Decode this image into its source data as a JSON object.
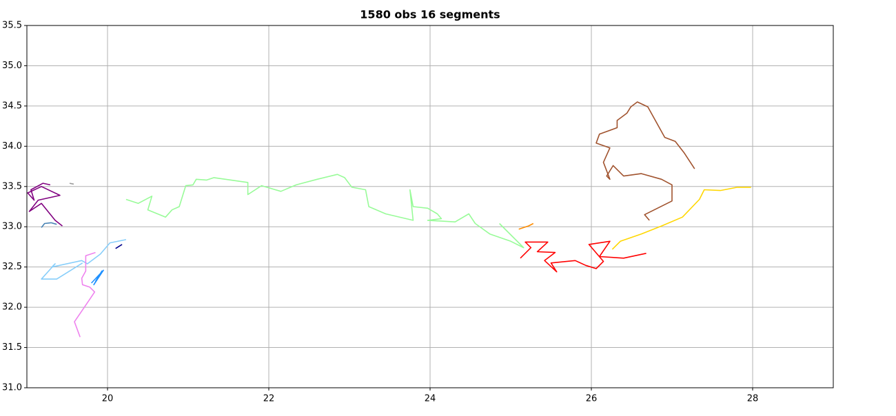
{
  "chart_data": {
    "type": "line",
    "title": "1580 obs 16 segments",
    "xlim": [
      19,
      29
    ],
    "ylim": [
      31,
      35.5
    ],
    "xticks": [
      20,
      22,
      24,
      26,
      28
    ],
    "yticks": [
      {
        "value": 31,
        "label": "31.0"
      },
      {
        "value": 31.5,
        "label": "31.5"
      },
      {
        "value": 32,
        "label": "32.0"
      },
      {
        "value": 32.5,
        "label": "32.5"
      },
      {
        "value": 33,
        "label": "33.0"
      },
      {
        "value": 33.5,
        "label": "33.5"
      },
      {
        "value": 34,
        "label": "34.0"
      },
      {
        "value": 34.5,
        "label": "34.5"
      },
      {
        "value": 35,
        "label": "35.0"
      },
      {
        "value": 35.5,
        "label": "35.5"
      }
    ],
    "grid": true,
    "series": [
      {
        "color": "#800080",
        "x": [
          19.44,
          19.35,
          19.18,
          19.03,
          19.14,
          19.41,
          19.18,
          19.01,
          19.09,
          19.05,
          19.2,
          19.29
        ],
        "values": [
          33.01,
          33.08,
          33.29,
          33.19,
          33.33,
          33.39,
          33.5,
          33.42,
          33.33,
          33.46,
          33.54,
          33.52
        ]
      },
      {
        "color": "#4682b4",
        "x": [
          19.18,
          19.22,
          19.3,
          19.37
        ],
        "values": [
          32.99,
          33.04,
          33.05,
          33.03
        ]
      },
      {
        "color": "#999999",
        "x": [
          19.53,
          19.58
        ],
        "values": [
          33.54,
          33.53
        ]
      },
      {
        "color": "#87cefa",
        "x": [
          20.23,
          20.03,
          19.91,
          19.75,
          19.68,
          19.31,
          19.35,
          19.18,
          19.37,
          19.69
        ],
        "values": [
          32.84,
          32.8,
          32.66,
          32.54,
          32.58,
          32.5,
          32.54,
          32.35,
          32.35,
          32.55
        ]
      },
      {
        "color": "#1e90ff",
        "x": [
          19.8,
          19.95,
          19.83,
          19.93,
          19.85
        ],
        "values": [
          32.3,
          32.46,
          32.28,
          32.45,
          32.32
        ]
      },
      {
        "color": "#00008b",
        "x": [
          20.1,
          20.18
        ],
        "values": [
          32.73,
          32.78
        ]
      },
      {
        "color": "#ee82ee",
        "x": [
          19.85,
          19.73,
          19.73,
          19.68,
          19.69,
          19.78,
          19.84,
          19.78,
          19.59,
          19.66
        ],
        "values": [
          32.68,
          32.64,
          32.45,
          32.36,
          32.28,
          32.25,
          32.19,
          32.1,
          31.82,
          31.63
        ]
      },
      {
        "color": "#98fb98",
        "x": [
          20.23,
          20.38,
          20.55,
          20.5,
          20.72,
          20.8,
          20.89,
          20.97,
          21.06,
          21.1,
          21.23,
          21.32,
          21.74,
          21.74,
          21.91,
          22.15,
          22.34,
          22.6,
          22.85,
          22.94,
          23.03,
          23.2,
          23.24,
          23.45,
          23.79,
          23.75,
          23.79,
          23.97,
          24.09,
          24.14,
          23.97,
          24.31,
          24.48,
          24.56,
          24.74,
          25.0,
          25.16,
          24.86
        ],
        "values": [
          33.34,
          33.29,
          33.38,
          33.21,
          33.12,
          33.21,
          33.25,
          33.51,
          33.52,
          33.59,
          33.58,
          33.61,
          33.55,
          33.4,
          33.51,
          33.44,
          33.52,
          33.59,
          33.65,
          33.61,
          33.49,
          33.46,
          33.25,
          33.16,
          33.08,
          33.46,
          33.25,
          33.23,
          33.16,
          33.1,
          33.08,
          33.06,
          33.16,
          33.04,
          32.91,
          32.82,
          32.74,
          33.04
        ]
      },
      {
        "color": "#ff8c00",
        "x": [
          25.1,
          25.22,
          25.28
        ],
        "values": [
          32.97,
          33.01,
          33.04
        ]
      },
      {
        "color": "#ff0000",
        "x": [
          25.12,
          25.25,
          25.18,
          25.46,
          25.33,
          25.55,
          25.42,
          25.57,
          25.5,
          25.8,
          25.93,
          26.06,
          26.15,
          25.97,
          26.23,
          26.1,
          26.4,
          26.68
        ],
        "values": [
          32.61,
          32.74,
          32.81,
          32.81,
          32.69,
          32.68,
          32.58,
          32.44,
          32.55,
          32.58,
          32.52,
          32.48,
          32.57,
          32.78,
          32.82,
          32.63,
          32.61,
          32.67
        ]
      },
      {
        "color": "#ffd700",
        "x": [
          26.26,
          26.36,
          26.62,
          26.87,
          27.13,
          27.34,
          27.4,
          27.6,
          27.81,
          27.98
        ],
        "values": [
          32.72,
          32.82,
          32.91,
          33.01,
          33.12,
          33.34,
          33.46,
          33.45,
          33.49,
          33.49
        ]
      },
      {
        "color": "#a0522d",
        "x": [
          26.72,
          26.66,
          27.0,
          27.0,
          26.87,
          26.62,
          26.4,
          26.27,
          26.19,
          26.23,
          26.15,
          26.23,
          26.06,
          26.1,
          26.32,
          26.32,
          26.44,
          26.49,
          26.57,
          26.7,
          26.91,
          27.04,
          27.15,
          27.28
        ],
        "values": [
          33.08,
          33.15,
          33.32,
          33.52,
          33.59,
          33.66,
          33.63,
          33.76,
          33.63,
          33.59,
          33.8,
          33.98,
          34.04,
          34.15,
          34.23,
          34.32,
          34.41,
          34.49,
          34.55,
          34.49,
          34.11,
          34.06,
          33.92,
          33.72
        ]
      }
    ]
  }
}
